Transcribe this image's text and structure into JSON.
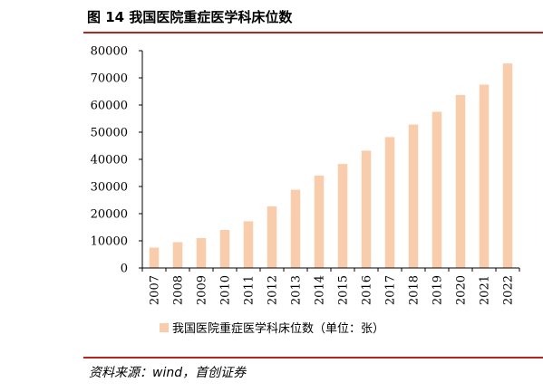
{
  "figure": {
    "title": "图 14  我国医院重症医学科床位数",
    "source": "资料来源：wind，首创证券"
  },
  "colors": {
    "bar": "#f9cdab",
    "rule": "#b32620",
    "axis": "#000000"
  },
  "chart_data": {
    "type": "bar",
    "title": "",
    "xlabel": "",
    "ylabel": "",
    "categories": [
      "2007",
      "2008",
      "2009",
      "2010",
      "2011",
      "2012",
      "2013",
      "2014",
      "2015",
      "2016",
      "2017",
      "2018",
      "2019",
      "2020",
      "2021",
      "2022"
    ],
    "series": [
      {
        "name": "我国医院重症医学科床位数（单位：张）",
        "values": [
          7500,
          9500,
          11000,
          14000,
          17200,
          22700,
          28800,
          34000,
          38300,
          43200,
          48200,
          52800,
          57500,
          63700,
          67500,
          75300
        ]
      }
    ],
    "ylim": [
      0,
      80000
    ],
    "yticks": [
      0,
      10000,
      20000,
      30000,
      40000,
      50000,
      60000,
      70000,
      80000
    ],
    "grid": false,
    "legend_position": "bottom"
  }
}
